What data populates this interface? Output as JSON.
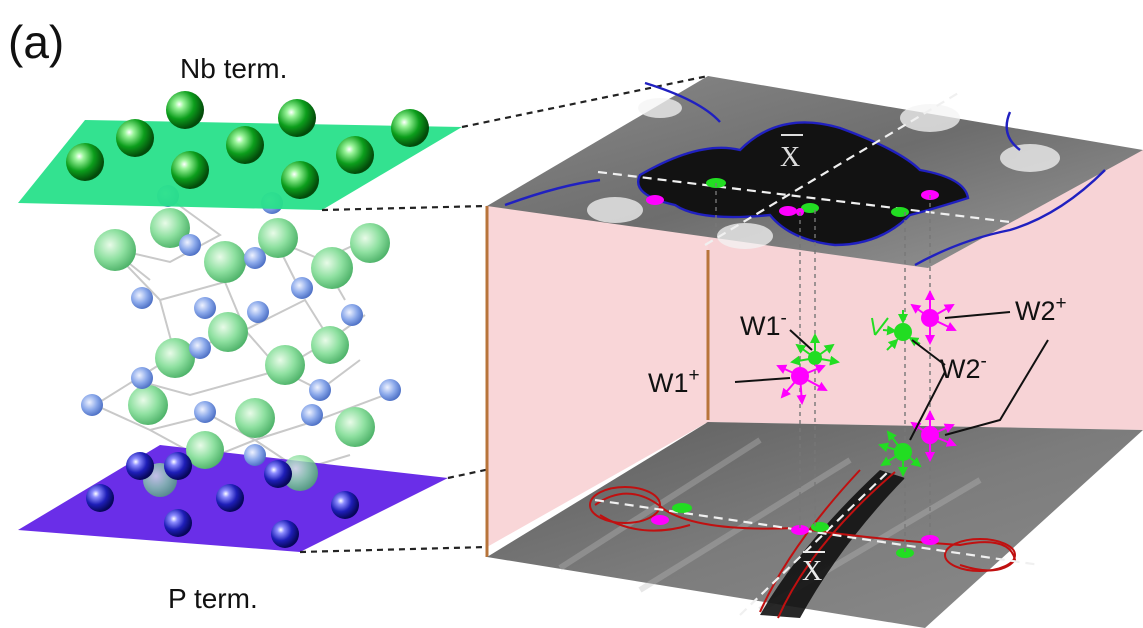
{
  "panel_label": "(a)",
  "top_termination_label": "Nb term.",
  "bottom_termination_label": "P term.",
  "top_surface_point_label": "X",
  "bottom_surface_point_label": "X",
  "weyl_labels": {
    "w1_minus_base": "W1",
    "w1_minus_sup": "-",
    "w1_plus_base": "W1",
    "w1_plus_sup": "+",
    "w2_minus_base": "W2",
    "w2_minus_sup": "-",
    "w2_plus_base": "W2",
    "w2_plus_sup": "+"
  },
  "colors": {
    "nb_plane": "#28e08a",
    "p_plane": "#6a2ee8",
    "nb_atom": "#0aa21f",
    "p_atom": "#1515b0",
    "bulk_nb_atom": "#7fdc9a",
    "bulk_p_atom": "#7fa0e6",
    "box_side": "#f9d6d8",
    "box_edge": "#b8743a",
    "weyl_positive": "#ff00ff",
    "weyl_negative": "#22dd22",
    "fermi_arc_top": "#2020c0",
    "fermi_arc_bottom": "#c01010"
  }
}
